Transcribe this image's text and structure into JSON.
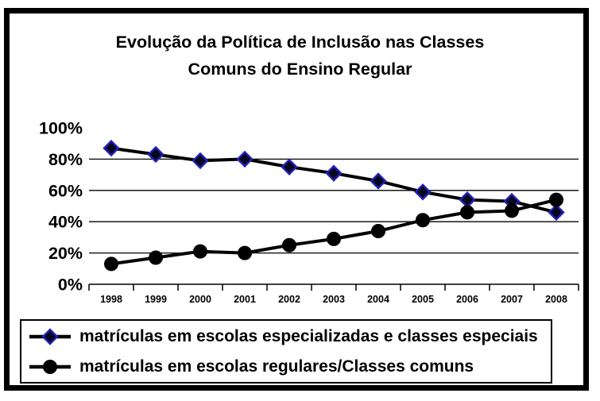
{
  "title": {
    "line1": "Evolução da Política de Inclusão nas Classes",
    "line2": "Comuns do Ensino Regular"
  },
  "chart_data": {
    "type": "line",
    "categories": [
      "1998",
      "1999",
      "2000",
      "2001",
      "2002",
      "2003",
      "2004",
      "2005",
      "2006",
      "2007",
      "2008"
    ],
    "series": [
      {
        "name": "matrículas em escolas especializadas e classes especiais",
        "marker": "diamond",
        "line_color": "#000000",
        "marker_fill": "#06061e",
        "marker_stroke": "#2222b8",
        "values": [
          87,
          83,
          79,
          80,
          75,
          71,
          66,
          59,
          54,
          53,
          46
        ]
      },
      {
        "name": "matrículas em escolas regulares/Classes comuns",
        "marker": "circle",
        "line_color": "#000000",
        "marker_fill": "#000000",
        "marker_stroke": "#000000",
        "values": [
          13,
          17,
          21,
          20,
          25,
          29,
          34,
          41,
          46,
          47,
          54
        ]
      }
    ],
    "y_ticks": [
      {
        "value": 100,
        "label": "100%"
      },
      {
        "value": 80,
        "label": "80%"
      },
      {
        "value": 60,
        "label": "60%"
      },
      {
        "value": 40,
        "label": "40%"
      },
      {
        "value": 20,
        "label": "20%"
      },
      {
        "value": 0,
        "label": "0%"
      }
    ],
    "gridline_values": [
      80,
      60,
      40,
      20
    ],
    "ylim": [
      0,
      100
    ],
    "grid": "horizontal",
    "legend_position": "bottom",
    "axis_color": "#000000",
    "background_color": "#ffffff",
    "frame_color": "#000000"
  }
}
